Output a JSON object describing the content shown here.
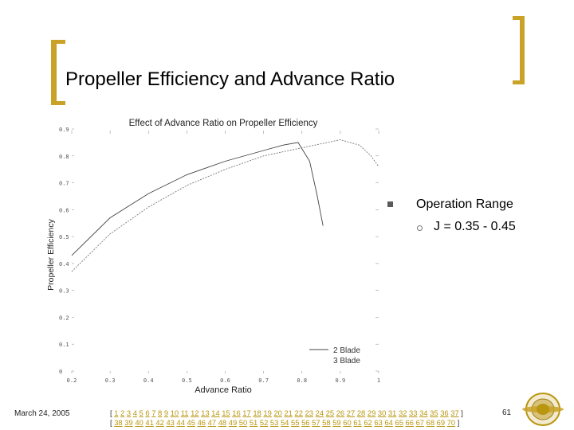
{
  "slide": {
    "title": "Propeller Efficiency and Advance Ratio",
    "bullet_main": "Operation Range",
    "bullet_sub": "J = 0.35 - 0.45",
    "date": "March 24, 2005",
    "page_number": "61",
    "accent_color": "#c9a227",
    "nav_links_row1": [
      "1",
      "2",
      "3",
      "4",
      "5",
      "6",
      "7",
      "8",
      "9",
      "10",
      "11",
      "12",
      "13",
      "14",
      "15",
      "16",
      "17",
      "18",
      "19",
      "20",
      "21",
      "22",
      "23",
      "24",
      "25",
      "26",
      "27",
      "28",
      "29",
      "30",
      "31",
      "32",
      "33",
      "34",
      "35",
      "36",
      "37"
    ],
    "nav_links_row2": [
      "38",
      "39",
      "40",
      "41",
      "42",
      "43",
      "44",
      "45",
      "46",
      "47",
      "48",
      "49",
      "50",
      "51",
      "52",
      "53",
      "54",
      "55",
      "56",
      "57",
      "58",
      "59",
      "60",
      "61",
      "62",
      "63",
      "64",
      "65",
      "66",
      "67",
      "68",
      "69",
      "70"
    ],
    "logo_icon": "university-seal-icon"
  },
  "chart_data": {
    "type": "line",
    "title": "Effect of Advance Ratio on Propeller Efficiency",
    "xlabel": "Advance Ratio",
    "ylabel": "Propeller Efficiency",
    "xlim": [
      0.2,
      1.0
    ],
    "ylim": [
      0,
      0.9
    ],
    "x_ticks": [
      "0.2",
      "0.3",
      "0.4",
      "0.5",
      "0.6",
      "0.7",
      "0.8",
      "0.9",
      "1"
    ],
    "y_ticks": [
      "0",
      "0.1",
      "0.2",
      "0.3",
      "0.4",
      "0.5",
      "0.6",
      "0.7",
      "0.8",
      "0.9"
    ],
    "legend_placement": "bottom-right",
    "series": [
      {
        "name": "2 Blade",
        "style": "solid",
        "color": "#444444",
        "x": [
          0.2,
          0.3,
          0.4,
          0.5,
          0.6,
          0.7,
          0.75,
          0.79,
          0.82,
          0.84,
          0.855
        ],
        "y": [
          0.43,
          0.57,
          0.66,
          0.73,
          0.78,
          0.82,
          0.84,
          0.85,
          0.78,
          0.65,
          0.54
        ]
      },
      {
        "name": "3 Blade",
        "style": "dashed",
        "color": "#777777",
        "x": [
          0.2,
          0.3,
          0.4,
          0.5,
          0.6,
          0.7,
          0.8,
          0.9,
          0.95,
          0.98,
          1.0
        ],
        "y": [
          0.37,
          0.51,
          0.61,
          0.69,
          0.75,
          0.8,
          0.83,
          0.86,
          0.84,
          0.8,
          0.76
        ]
      }
    ]
  }
}
